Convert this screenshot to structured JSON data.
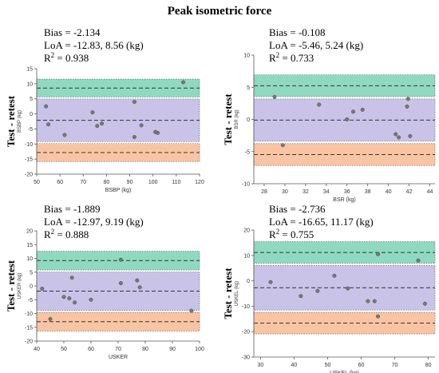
{
  "figure_title": "Peak isometric force",
  "side_label": "Test - retest",
  "colors": {
    "upper_band": "#8fd9c0",
    "middle_band": "#c9c3e8",
    "lower_band": "#f9c4a4",
    "point": "#777777",
    "line": "#333333"
  },
  "chart_data": [
    {
      "type": "scatter",
      "stats": {
        "bias": "Bias = -2.134",
        "loa": "LoA = -12.83, 8.56 (kg)",
        "r2_prefix": "R",
        "r2_sup": "2",
        "r2_value": " = 0.938"
      },
      "ylabel": "BSBP (kg)",
      "xlabel": "BSBP (kg)",
      "xlim": [
        50,
        120
      ],
      "ylim": [
        -20,
        15
      ],
      "xticks": [
        "50",
        "60",
        "70",
        "80",
        "90",
        "100",
        "110",
        "120"
      ],
      "yticks": [
        "-20",
        "-15",
        "-10",
        "-5",
        "0",
        "5",
        "10",
        "15"
      ],
      "bias": -2.134,
      "loa_lower": -12.83,
      "loa_upper": 8.56,
      "points": [
        {
          "x": 54,
          "y": 2.5
        },
        {
          "x": 55,
          "y": -3.5
        },
        {
          "x": 62,
          "y": -7.0
        },
        {
          "x": 74,
          "y": 0.5
        },
        {
          "x": 76,
          "y": -4.0
        },
        {
          "x": 78,
          "y": -3.2
        },
        {
          "x": 92,
          "y": 4.0
        },
        {
          "x": 92,
          "y": -7.7
        },
        {
          "x": 95,
          "y": -3.8
        },
        {
          "x": 101,
          "y": -6.0
        },
        {
          "x": 102,
          "y": -6.3
        },
        {
          "x": 113,
          "y": 10.5
        }
      ]
    },
    {
      "type": "scatter",
      "stats": {
        "bias": "Bias = -0.108",
        "loa": "LoA = -5.46, 5.24 (kg)",
        "r2_prefix": "R",
        "r2_sup": "2",
        "r2_value": " = 0.733"
      },
      "ylabel": "BSR (kg)",
      "xlabel": "BSR (kg)",
      "xlim": [
        27,
        44.5
      ],
      "ylim": [
        -10,
        10
      ],
      "xticks": [
        "28",
        "30",
        "32",
        "34",
        "36",
        "38",
        "40",
        "42",
        "44"
      ],
      "xtick_values": [
        28,
        30,
        32,
        34,
        36,
        38,
        40,
        42,
        44
      ],
      "yticks": [
        "-10",
        "-5",
        "0",
        "5",
        "10"
      ],
      "bias": -0.108,
      "loa_lower": -5.46,
      "loa_upper": 5.24,
      "points": [
        {
          "x": 29.0,
          "y": 3.5
        },
        {
          "x": 29.8,
          "y": -4.0
        },
        {
          "x": 33.3,
          "y": 2.3
        },
        {
          "x": 36.0,
          "y": 0.0
        },
        {
          "x": 36.6,
          "y": 1.2
        },
        {
          "x": 37.5,
          "y": 1.5
        },
        {
          "x": 40.7,
          "y": -2.3
        },
        {
          "x": 41.0,
          "y": -2.8
        },
        {
          "x": 41.8,
          "y": 2.0
        },
        {
          "x": 41.9,
          "y": 3.2
        },
        {
          "x": 42.1,
          "y": -2.6
        }
      ]
    },
    {
      "type": "scatter",
      "stats": {
        "bias": "Bias = -1.889",
        "loa": "LoA = -12.97, 9.19 (kg)",
        "r2_prefix": "R",
        "r2_sup": "2",
        "r2_value": " = 0.888"
      },
      "ylabel": "USKER (kg)",
      "xlabel": "USKER",
      "xlim": [
        40,
        100
      ],
      "ylim": [
        -20,
        20
      ],
      "xticks": [
        "40",
        "50",
        "60",
        "70",
        "80",
        "90",
        "100"
      ],
      "yticks": [
        "-20",
        "-15",
        "-10",
        "-5",
        "0",
        "5",
        "10",
        "15",
        "20"
      ],
      "bias": -1.889,
      "loa_lower": -12.97,
      "loa_upper": 9.19,
      "points": [
        {
          "x": 42,
          "y": -1.0
        },
        {
          "x": 45,
          "y": -12.0
        },
        {
          "x": 50,
          "y": -4.0
        },
        {
          "x": 52,
          "y": -4.5
        },
        {
          "x": 53,
          "y": 3.0
        },
        {
          "x": 54,
          "y": -6.0
        },
        {
          "x": 60,
          "y": -5.0
        },
        {
          "x": 71,
          "y": 9.5
        },
        {
          "x": 71,
          "y": 1.0
        },
        {
          "x": 77,
          "y": 2.0
        },
        {
          "x": 78,
          "y": -0.5
        },
        {
          "x": 97,
          "y": -9.0
        }
      ]
    },
    {
      "type": "scatter",
      "stats": {
        "bias": "Bias = -2.736",
        "loa": "LoA = -16.65, 11.17 (kg)",
        "r2_prefix": "R",
        "r2_sup": "2",
        "r2_value": " = 0.755"
      },
      "ylabel": "USKEL (kg)",
      "xlabel": "USKEL (kg)",
      "xlim": [
        28,
        82
      ],
      "ylim": [
        -30,
        20
      ],
      "xticks": [
        "30",
        "40",
        "50",
        "60",
        "70",
        "80"
      ],
      "xtick_values": [
        30,
        40,
        50,
        60,
        70,
        80
      ],
      "yticks": [
        "-30",
        "-20",
        "-10",
        "0",
        "10",
        "20"
      ],
      "bias": -2.736,
      "loa_lower": -16.65,
      "loa_upper": 11.17,
      "points": [
        {
          "x": 33,
          "y": -0.5
        },
        {
          "x": 42,
          "y": -6.0
        },
        {
          "x": 47,
          "y": -4.0
        },
        {
          "x": 52,
          "y": 2.0
        },
        {
          "x": 56,
          "y": -3.0
        },
        {
          "x": 62,
          "y": -8.0
        },
        {
          "x": 64,
          "y": -8.0
        },
        {
          "x": 65,
          "y": -14.0
        },
        {
          "x": 65,
          "y": 10.5
        },
        {
          "x": 77,
          "y": 8.0
        },
        {
          "x": 79,
          "y": -9.0
        }
      ]
    }
  ]
}
